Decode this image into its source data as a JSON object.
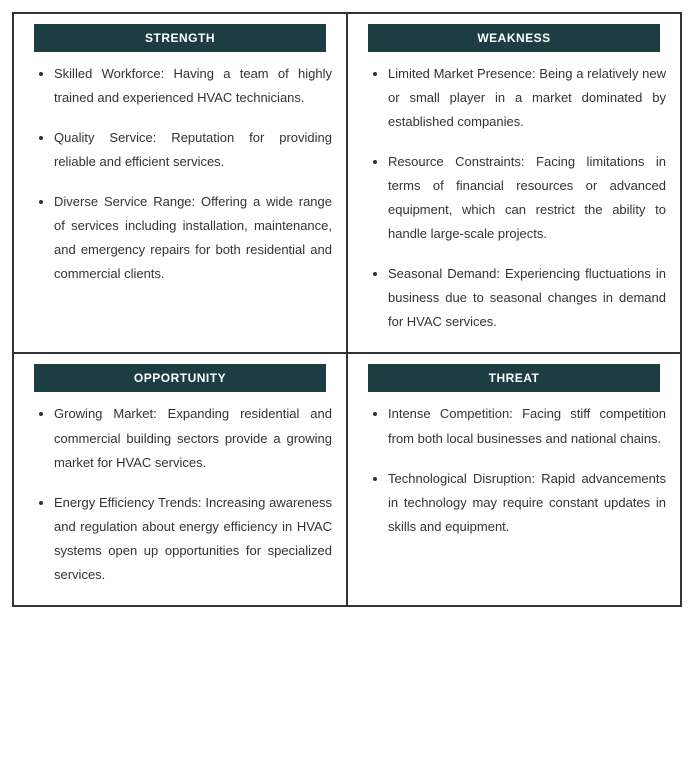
{
  "layout": {
    "grid_cols": 2,
    "grid_rows": 2,
    "border_color": "#333333",
    "background_color": "#ffffff"
  },
  "header_style": {
    "background_color": "#1c3d42",
    "text_color": "#ffffff",
    "font_size_pt": 9,
    "font_weight": "bold"
  },
  "body_style": {
    "text_color": "#333333",
    "font_size_pt": 10,
    "line_height": 1.85,
    "text_align": "justify"
  },
  "quadrants": [
    {
      "key": "strength",
      "title": "STRENGTH",
      "items": [
        "Skilled Workforce: Having a team of highly trained and experienced HVAC technicians.",
        "Quality Service: Reputation for providing reliable and efficient services.",
        "Diverse Service Range: Offering a wide range of services including installation, maintenance, and emergency repairs for both residential and commercial clients."
      ]
    },
    {
      "key": "weakness",
      "title": "WEAKNESS",
      "items": [
        "Limited Market Presence: Being a relatively new or small player in a market dominated by established companies.",
        "Resource Constraints: Facing limitations in terms of financial resources or advanced equipment, which can restrict the ability to handle large-scale projects.",
        "Seasonal Demand: Experiencing fluctuations in business due to seasonal changes in demand for HVAC services."
      ]
    },
    {
      "key": "opportunity",
      "title": "OPPORTUNITY",
      "items": [
        "Growing Market: Expanding residential and commercial building sectors provide a growing market for HVAC services.",
        "Energy Efficiency Trends: Increasing awareness and regulation about energy efficiency in HVAC systems open up opportunities for specialized services."
      ]
    },
    {
      "key": "threat",
      "title": "THREAT",
      "items": [
        "Intense Competition: Facing stiff competition from both local businesses and national chains.",
        "Technological Disruption: Rapid advancements in technology may require constant updates in skills and equipment."
      ]
    }
  ]
}
